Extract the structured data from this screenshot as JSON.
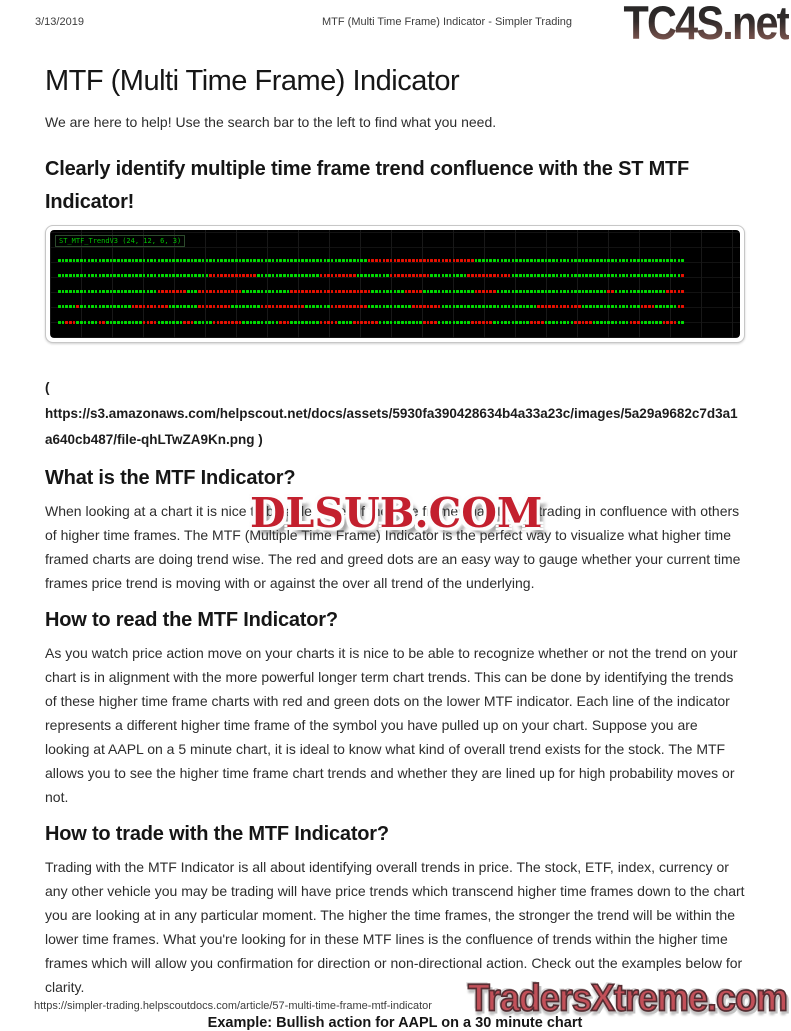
{
  "colors": {
    "body_text": "#2d2d2d",
    "heading_text": "#161616",
    "watermark_red": "#c3202e",
    "footer_logo_red": "#c25059",
    "tc4s_top": "#262626",
    "tc4s_bottom": "#7f5750"
  },
  "header": {
    "date": "3/13/2019",
    "doc_title": "MTF (Multi Time Frame) Indicator - Simpler Trading",
    "logo_text": "TC4S.net"
  },
  "article": {
    "title": "MTF (Multi Time Frame) Indicator",
    "intro": "We are here to help! Use the search bar to the left to find what you need.",
    "headline": "Clearly identify multiple time frame trend confluence with the ST MTF Indicator!",
    "image_link": "(\nhttps://s3.amazonaws.com/helpscout.net/docs/assets/5930fa390428634b4a33a23c/images/5a29a9682c7d3a1\na640cb487/file-qhLTwZA9Kn.png )",
    "watermark": "DLSUB.COM",
    "sections": [
      {
        "heading": "What is the MTF Indicator?",
        "body": "When looking at a chart it is nice to be able to see if the time frame chart that is trading in confluence with others of higher time frames. The MTF (Multiple Time Frame) Indicator is the perfect way to visualize what higher time framed charts are doing trend wise. The red and greed dots are an easy way to gauge whether your current time frames price trend is moving with or against the over all trend of the underlying."
      },
      {
        "heading": "How to read the MTF Indicator?",
        "body": "As you watch price action move on your charts it is nice to be able to recognize whether or not the trend on your chart is in alignment with the more powerful longer term chart trends. This can be done by identifying the trends of these higher time frame charts with red and green dots on the lower MTF indicator. Each line of the indicator represents a different higher time frame of the symbol you have pulled up on your chart. Suppose you are looking at AAPL on a 5 minute chart, it is ideal to know what kind of overall trend exists for the stock. The MTF allows you to see the higher time frame chart trends and whether they are lined up for high probability moves or not."
      },
      {
        "heading": "How to trade with the MTF Indicator?",
        "body": "Trading with the MTF Indicator is all about identifying overall trends in price. The stock, ETF, index, currency or any other vehicle you may be trading will have price trends which transcend higher time frames down to the chart you are looking at in any particular moment. The higher the time frames, the stronger the trend will be within the lower time frames. What you're looking for in these MTF lines is the confluence of trends within the higher time frames which will allow you confirmation for direction or non-directional action. Check out the examples below for clarity."
      }
    ],
    "example_caption": "Example: Bullish action for AAPL on a 30 minute chart"
  },
  "chart_data": {
    "type": "heatmap",
    "title": "ST_MTF_TrendV3 (24, 12, 6, 3)",
    "description": "MTF indicator panel on black background: 5 horizontal strips of trend dots, one per higher time frame; green dot = bullish trend, red dot = bearish trend; run-length encoded left to right, 170 dots per row",
    "legend": {
      "G": "green (bullish)",
      "R": "red (bearish)"
    },
    "colors": {
      "green": "#00dc00",
      "red": "#e81000",
      "background": "#000000",
      "grid": "#181818",
      "label_green": "#00c400"
    },
    "rows_rle": [
      "G84 R29 G57",
      "G41 R13 G17 R10 G9 R11 G10 R12 G46 R1",
      "G27 R8 G3 R12 G13 R22 G9 R5 G14 R6 G30 R2 G14 R5",
      "G5 R1 G14 R10 G8 R9 G8 R12 G7 R10 G12 R8 G26 R12 G16 R4 G6 R2",
      "G2 R3 G6 R2 G10 R4 G7 R3 G5 R8 G10 R3 G8 R5 G4 R7 G12 R4 G9 R6 G10 R4 G8 R5 G10 R3 G6 R4 G2"
    ]
  },
  "footer": {
    "url": "https://simpler-trading.helpscoutdocs.com/article/57-multi-time-frame-mtf-indicator",
    "logo_text": "TradersXtreme.com"
  }
}
